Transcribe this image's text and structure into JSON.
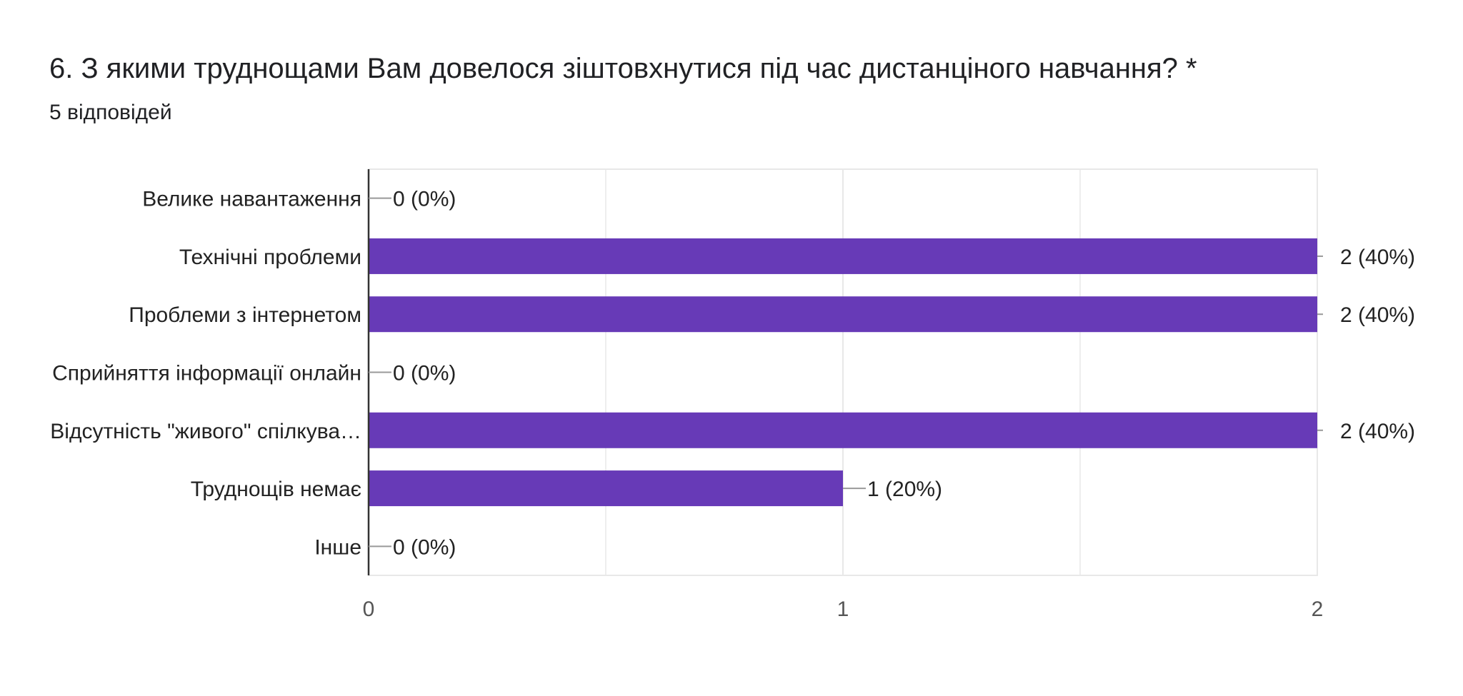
{
  "question": {
    "title": "6. З якими труднощами Вам довелося зіштовхнутися під час дистанціного навчання? *",
    "responses": "5 відповідей"
  },
  "colors": {
    "bar": "#673AB7",
    "grid": "#e8e8e8",
    "axis": "#333333",
    "leader": "#999999",
    "text": "#222222"
  },
  "chart_data": {
    "type": "bar",
    "orientation": "horizontal",
    "categories": [
      "Велике навантаження",
      "Технічні проблеми",
      "Проблеми з інтернетом",
      "Сприйняття інформації онлайн",
      "Відсутність \"живого\" спілкува…",
      "Труднощів немає",
      "Інше"
    ],
    "values": [
      0,
      2,
      2,
      0,
      2,
      1,
      0
    ],
    "data_labels": [
      "0 (0%)",
      "2 (40%)",
      "2 (40%)",
      "0 (0%)",
      "2 (40%)",
      "1 (20%)",
      "0 (0%)"
    ],
    "xlim": [
      0,
      2
    ],
    "x_ticks": [
      "0",
      "1",
      "2"
    ],
    "grid": true,
    "legend": "none",
    "title": "",
    "xlabel": "",
    "ylabel": ""
  }
}
